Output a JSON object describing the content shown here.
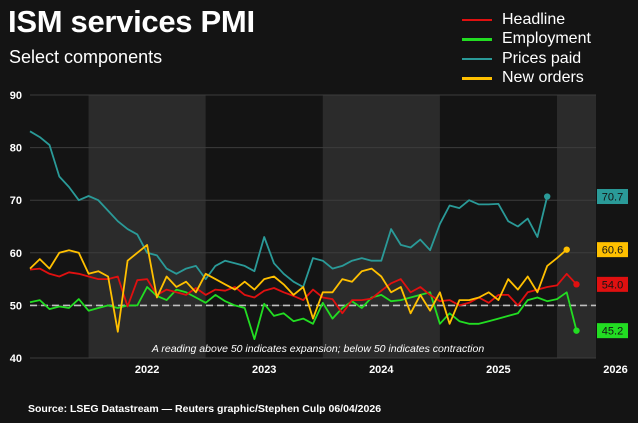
{
  "title": "ISM services PMI",
  "subtitle": "Select components",
  "source": "Source: LSEG Datastream — Reuters graphic/Stephen Culp 06/04/2026",
  "colors": {
    "background": "#141414",
    "plot_band": "#2b2b2b",
    "grid": "#3c3c3c",
    "threshold": "#bfbfbf"
  },
  "chart_data": {
    "type": "line",
    "ylim": [
      40,
      90
    ],
    "yticks": [
      40,
      50,
      60,
      70,
      80,
      90
    ],
    "x_range": [
      "2021-07",
      "2026-05"
    ],
    "year_labels": [
      "2022",
      "2023",
      "2024",
      "2025",
      "2026"
    ],
    "threshold": 50,
    "annotation": "A reading above 50 indicates expansion; below 50 indicates contraction",
    "legend_position": "top-right",
    "grid": true,
    "series": [
      {
        "name": "Headline",
        "color": "#e01010",
        "end_label": "54.0",
        "values": [
          [
            "2021-07",
            56.8
          ],
          [
            "2021-08",
            57.0
          ],
          [
            "2021-09",
            56.0
          ],
          [
            "2021-10",
            55.5
          ],
          [
            "2021-11",
            56.3
          ],
          [
            "2021-12",
            56.0
          ],
          [
            "2022-01",
            55.5
          ],
          [
            "2022-02",
            55.0
          ],
          [
            "2022-03",
            55.0
          ],
          [
            "2022-04",
            55.5
          ],
          [
            "2022-05",
            49.8
          ],
          [
            "2022-06",
            54.8
          ],
          [
            "2022-07",
            55.0
          ],
          [
            "2022-08",
            52.0
          ],
          [
            "2022-09",
            53.0
          ],
          [
            "2022-10",
            52.5
          ],
          [
            "2022-11",
            52.0
          ],
          [
            "2022-12",
            53.3
          ],
          [
            "2023-01",
            52.0
          ],
          [
            "2023-02",
            53.0
          ],
          [
            "2023-03",
            52.8
          ],
          [
            "2023-04",
            53.5
          ],
          [
            "2023-05",
            52.0
          ],
          [
            "2023-06",
            51.5
          ],
          [
            "2023-07",
            52.8
          ],
          [
            "2023-08",
            53.3
          ],
          [
            "2023-09",
            52.5
          ],
          [
            "2023-10",
            51.8
          ],
          [
            "2023-11",
            51.0
          ],
          [
            "2023-12",
            53.0
          ],
          [
            "2024-01",
            51.5
          ],
          [
            "2024-02",
            51.2
          ],
          [
            "2024-03",
            48.5
          ],
          [
            "2024-04",
            51.0
          ],
          [
            "2024-05",
            51.0
          ],
          [
            "2024-06",
            51.3
          ],
          [
            "2024-07",
            52.8
          ],
          [
            "2024-08",
            54.2
          ],
          [
            "2024-09",
            55.0
          ],
          [
            "2024-10",
            52.5
          ],
          [
            "2024-11",
            53.5
          ],
          [
            "2024-12",
            52.0
          ],
          [
            "2025-01",
            50.8
          ],
          [
            "2025-02",
            51.0
          ],
          [
            "2025-03",
            50.0
          ],
          [
            "2025-04",
            50.5
          ],
          [
            "2025-05",
            51.5
          ],
          [
            "2025-06",
            50.5
          ],
          [
            "2025-07",
            52.0
          ],
          [
            "2025-08",
            52.0
          ],
          [
            "2025-09",
            50.0
          ],
          [
            "2025-10",
            52.5
          ],
          [
            "2025-11",
            53.0
          ],
          [
            "2025-12",
            53.5
          ],
          [
            "2026-01",
            53.8
          ],
          [
            "2026-02",
            56.0
          ],
          [
            "2026-03",
            54.0
          ]
        ]
      },
      {
        "name": "Employment",
        "color": "#22dd22",
        "end_label": "45.2",
        "values": [
          [
            "2021-07",
            50.6
          ],
          [
            "2021-08",
            51.0
          ],
          [
            "2021-09",
            49.3
          ],
          [
            "2021-10",
            49.8
          ],
          [
            "2021-11",
            49.5
          ],
          [
            "2021-12",
            51.2
          ],
          [
            "2022-01",
            49.0
          ],
          [
            "2022-02",
            49.5
          ],
          [
            "2022-03",
            50.0
          ],
          [
            "2022-04",
            49.5
          ],
          [
            "2022-05",
            50.0
          ],
          [
            "2022-06",
            50.0
          ],
          [
            "2022-07",
            53.5
          ],
          [
            "2022-08",
            51.8
          ],
          [
            "2022-09",
            51.0
          ],
          [
            "2022-10",
            53.0
          ],
          [
            "2022-11",
            52.5
          ],
          [
            "2022-12",
            51.5
          ],
          [
            "2023-01",
            50.5
          ],
          [
            "2023-02",
            52.0
          ],
          [
            "2023-03",
            50.8
          ],
          [
            "2023-04",
            50.0
          ],
          [
            "2023-05",
            49.5
          ],
          [
            "2023-06",
            43.6
          ],
          [
            "2023-07",
            50.3
          ],
          [
            "2023-08",
            48.0
          ],
          [
            "2023-09",
            48.5
          ],
          [
            "2023-10",
            47.0
          ],
          [
            "2023-11",
            47.5
          ],
          [
            "2023-12",
            46.5
          ],
          [
            "2024-01",
            50.5
          ],
          [
            "2024-02",
            47.5
          ],
          [
            "2024-03",
            49.5
          ],
          [
            "2024-04",
            50.8
          ],
          [
            "2024-05",
            49.5
          ],
          [
            "2024-06",
            51.5
          ],
          [
            "2024-07",
            52.0
          ],
          [
            "2024-08",
            50.8
          ],
          [
            "2024-09",
            51.0
          ],
          [
            "2024-10",
            51.5
          ],
          [
            "2024-11",
            52.0
          ],
          [
            "2024-12",
            52.5
          ],
          [
            "2025-01",
            46.5
          ],
          [
            "2025-02",
            48.5
          ],
          [
            "2025-03",
            47.0
          ],
          [
            "2025-04",
            46.5
          ],
          [
            "2025-05",
            46.5
          ],
          [
            "2025-06",
            47.0
          ],
          [
            "2025-07",
            47.5
          ],
          [
            "2025-08",
            48.0
          ],
          [
            "2025-09",
            48.5
          ],
          [
            "2025-10",
            51.0
          ],
          [
            "2025-11",
            51.5
          ],
          [
            "2025-12",
            50.8
          ],
          [
            "2026-01",
            51.2
          ],
          [
            "2026-02",
            52.5
          ],
          [
            "2026-03",
            45.2
          ]
        ]
      },
      {
        "name": "Prices paid",
        "color": "#2a9a98",
        "end_label": "70.7",
        "values": [
          [
            "2021-07",
            83.1
          ],
          [
            "2021-08",
            82.0
          ],
          [
            "2021-09",
            80.5
          ],
          [
            "2021-10",
            74.5
          ],
          [
            "2021-11",
            72.5
          ],
          [
            "2021-12",
            70.0
          ],
          [
            "2022-01",
            70.8
          ],
          [
            "2022-02",
            70.0
          ],
          [
            "2022-03",
            68.0
          ],
          [
            "2022-04",
            66.0
          ],
          [
            "2022-05",
            64.5
          ],
          [
            "2022-06",
            63.5
          ],
          [
            "2022-07",
            60.0
          ],
          [
            "2022-08",
            59.5
          ],
          [
            "2022-09",
            57.0
          ],
          [
            "2022-10",
            56.0
          ],
          [
            "2022-11",
            57.0
          ],
          [
            "2022-12",
            57.5
          ],
          [
            "2023-01",
            55.0
          ],
          [
            "2023-02",
            57.5
          ],
          [
            "2023-03",
            58.5
          ],
          [
            "2023-04",
            58.0
          ],
          [
            "2023-05",
            57.5
          ],
          [
            "2023-06",
            56.5
          ],
          [
            "2023-07",
            63.0
          ],
          [
            "2023-08",
            58.0
          ],
          [
            "2023-09",
            56.0
          ],
          [
            "2023-10",
            54.5
          ],
          [
            "2023-11",
            53.5
          ],
          [
            "2023-12",
            59.0
          ],
          [
            "2024-01",
            58.5
          ],
          [
            "2024-02",
            57.0
          ],
          [
            "2024-03",
            57.5
          ],
          [
            "2024-04",
            58.5
          ],
          [
            "2024-05",
            59.0
          ],
          [
            "2024-06",
            58.5
          ],
          [
            "2024-07",
            58.5
          ],
          [
            "2024-08",
            64.5
          ],
          [
            "2024-09",
            61.5
          ],
          [
            "2024-10",
            61.0
          ],
          [
            "2024-11",
            62.5
          ],
          [
            "2024-12",
            60.5
          ],
          [
            "2025-01",
            65.5
          ],
          [
            "2025-02",
            69.0
          ],
          [
            "2025-03",
            68.5
          ],
          [
            "2025-04",
            70.0
          ],
          [
            "2025-05",
            69.2
          ],
          [
            "2025-06",
            69.2
          ],
          [
            "2025-07",
            69.3
          ],
          [
            "2025-08",
            66.0
          ],
          [
            "2025-09",
            65.0
          ],
          [
            "2025-10",
            66.5
          ],
          [
            "2025-11",
            63.0
          ],
          [
            "2025-12",
            70.7
          ]
        ]
      },
      {
        "name": "New orders",
        "color": "#ffc000",
        "end_label": "60.6",
        "values": [
          [
            "2021-07",
            57.0
          ],
          [
            "2021-08",
            58.8
          ],
          [
            "2021-09",
            57.0
          ],
          [
            "2021-10",
            60.0
          ],
          [
            "2021-11",
            60.5
          ],
          [
            "2021-12",
            60.0
          ],
          [
            "2022-01",
            56.0
          ],
          [
            "2022-02",
            56.5
          ],
          [
            "2022-03",
            55.5
          ],
          [
            "2022-04",
            45.0
          ],
          [
            "2022-05",
            58.5
          ],
          [
            "2022-06",
            60.0
          ],
          [
            "2022-07",
            61.5
          ],
          [
            "2022-08",
            51.5
          ],
          [
            "2022-09",
            55.5
          ],
          [
            "2022-10",
            53.5
          ],
          [
            "2022-11",
            54.5
          ],
          [
            "2022-12",
            52.5
          ],
          [
            "2023-01",
            56.0
          ],
          [
            "2023-02",
            55.0
          ],
          [
            "2023-03",
            54.0
          ],
          [
            "2023-04",
            53.0
          ],
          [
            "2023-05",
            54.5
          ],
          [
            "2023-06",
            53.0
          ],
          [
            "2023-07",
            55.0
          ],
          [
            "2023-08",
            55.5
          ],
          [
            "2023-09",
            54.0
          ],
          [
            "2023-10",
            52.0
          ],
          [
            "2023-11",
            53.5
          ],
          [
            "2023-12",
            47.5
          ],
          [
            "2024-01",
            52.5
          ],
          [
            "2024-02",
            52.5
          ],
          [
            "2024-03",
            55.0
          ],
          [
            "2024-04",
            54.5
          ],
          [
            "2024-05",
            56.5
          ],
          [
            "2024-06",
            57.0
          ],
          [
            "2024-07",
            55.5
          ],
          [
            "2024-08",
            52.5
          ],
          [
            "2024-09",
            53.5
          ],
          [
            "2024-10",
            48.5
          ],
          [
            "2024-11",
            52.0
          ],
          [
            "2024-12",
            49.0
          ],
          [
            "2025-01",
            52.5
          ],
          [
            "2025-02",
            46.5
          ],
          [
            "2025-03",
            51.0
          ],
          [
            "2025-04",
            51.0
          ],
          [
            "2025-05",
            51.5
          ],
          [
            "2025-06",
            52.5
          ],
          [
            "2025-07",
            51.0
          ],
          [
            "2025-08",
            55.0
          ],
          [
            "2025-09",
            53.0
          ],
          [
            "2025-10",
            55.5
          ],
          [
            "2025-11",
            52.5
          ],
          [
            "2025-12",
            57.5
          ],
          [
            "2026-01",
            59.0
          ],
          [
            "2026-02",
            60.6
          ]
        ]
      }
    ]
  }
}
